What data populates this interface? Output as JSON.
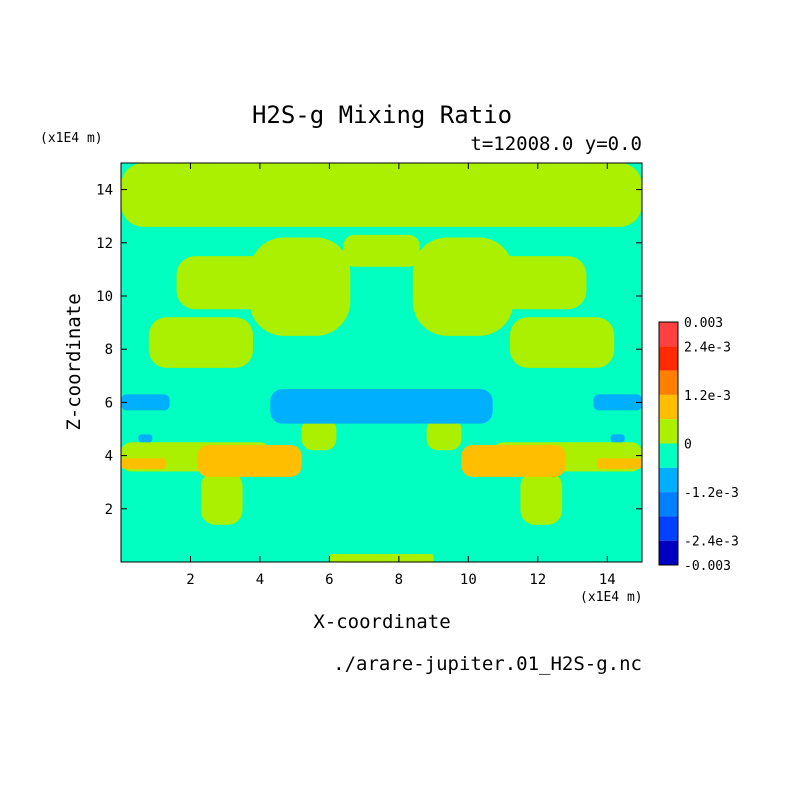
{
  "chart_data": {
    "type": "heatmap",
    "title": "H2S-g Mixing Ratio",
    "subtitle": "t=12008.0 y=0.0",
    "xlabel": "X-coordinate",
    "ylabel": "Z-coordinate",
    "x_unit": "(x1E4 m)",
    "y_unit": "(x1E4 m)",
    "footer": "./arare-jupiter.01_H2S-g.nc",
    "xlim": [
      0,
      15
    ],
    "ylim": [
      0,
      15
    ],
    "x_ticks": [
      2,
      4,
      6,
      8,
      10,
      12,
      14
    ],
    "y_ticks": [
      2,
      4,
      6,
      8,
      10,
      12,
      14
    ],
    "grid": false,
    "colorbar": {
      "range": [
        -0.003,
        0.003
      ],
      "levels": [
        {
          "from": 0.0024,
          "to": 0.003,
          "color": "#ff4040"
        },
        {
          "from": 0.0018,
          "to": 0.0024,
          "color": "#ff2a00"
        },
        {
          "from": 0.0012,
          "to": 0.0018,
          "color": "#ff7f00"
        },
        {
          "from": 0.0006,
          "to": 0.0012,
          "color": "#ffbf00"
        },
        {
          "from": 0.0,
          "to": 0.0006,
          "color": "#aaf000"
        },
        {
          "from": -0.0006,
          "to": 0.0,
          "color": "#00ffc0"
        },
        {
          "from": -0.0012,
          "to": -0.0006,
          "color": "#00b0ff"
        },
        {
          "from": -0.0018,
          "to": -0.0012,
          "color": "#007fff"
        },
        {
          "from": -0.0024,
          "to": -0.0018,
          "color": "#0040ff"
        },
        {
          "from": -0.003,
          "to": -0.0024,
          "color": "#0000c0"
        }
      ],
      "tick_labels": [
        {
          "value": 0.003,
          "label": "0.003"
        },
        {
          "value": 0.0024,
          "label": "2.4e-3"
        },
        {
          "value": 0.0012,
          "label": "1.2e-3"
        },
        {
          "value": 0.0,
          "label": "0"
        },
        {
          "value": -0.0012,
          "label": "-1.2e-3"
        },
        {
          "value": -0.0024,
          "label": "-2.4e-3"
        },
        {
          "value": -0.003,
          "label": "-0.003"
        }
      ]
    },
    "regions": [
      {
        "level": 0.0003,
        "color": "#aaf000",
        "x": [
          0,
          15
        ],
        "z": [
          12.6,
          15
        ]
      },
      {
        "level": 0.0003,
        "color": "#aaf000",
        "x": [
          0.8,
          3.8
        ],
        "z": [
          7.3,
          9.2
        ]
      },
      {
        "level": 0.0003,
        "color": "#aaf000",
        "x": [
          11.2,
          14.2
        ],
        "z": [
          7.3,
          9.2
        ]
      },
      {
        "level": 0.0003,
        "color": "#aaf000",
        "x": [
          3.7,
          6.6
        ],
        "z": [
          8.5,
          12.2
        ]
      },
      {
        "level": 0.0003,
        "color": "#aaf000",
        "x": [
          8.4,
          11.3
        ],
        "z": [
          8.5,
          12.2
        ]
      },
      {
        "level": 0.0003,
        "color": "#aaf000",
        "x": [
          1.6,
          4.5
        ],
        "z": [
          9.5,
          11.5
        ]
      },
      {
        "level": 0.0003,
        "color": "#aaf000",
        "x": [
          10.5,
          13.4
        ],
        "z": [
          9.5,
          11.5
        ]
      },
      {
        "level": 0.0003,
        "color": "#aaf000",
        "x": [
          6.4,
          8.6
        ],
        "z": [
          11.1,
          12.3
        ]
      },
      {
        "level": 0.0003,
        "color": "#aaf000",
        "x": [
          0,
          4.3
        ],
        "z": [
          3.4,
          4.5
        ]
      },
      {
        "level": 0.0003,
        "color": "#aaf000",
        "x": [
          10.7,
          15
        ],
        "z": [
          3.4,
          4.5
        ]
      },
      {
        "level": 0.0003,
        "color": "#aaf000",
        "x": [
          2.3,
          3.5
        ],
        "z": [
          1.4,
          3.4
        ]
      },
      {
        "level": 0.0003,
        "color": "#aaf000",
        "x": [
          11.5,
          12.7
        ],
        "z": [
          1.4,
          3.4
        ]
      },
      {
        "level": 0.0003,
        "color": "#aaf000",
        "x": [
          5.2,
          6.2
        ],
        "z": [
          4.2,
          5.4
        ]
      },
      {
        "level": 0.0003,
        "color": "#aaf000",
        "x": [
          8.8,
          9.8
        ],
        "z": [
          4.2,
          5.4
        ]
      },
      {
        "level": 0.0003,
        "color": "#aaf000",
        "x": [
          6.0,
          9.0
        ],
        "z": [
          0,
          0.3
        ]
      },
      {
        "level": 0.0009,
        "color": "#ffbf00",
        "x": [
          2.2,
          5.2
        ],
        "z": [
          3.2,
          4.4
        ]
      },
      {
        "level": 0.0009,
        "color": "#ffbf00",
        "x": [
          9.8,
          12.8
        ],
        "z": [
          3.2,
          4.4
        ]
      },
      {
        "level": 0.0009,
        "color": "#ffbf00",
        "x": [
          0,
          1.3
        ],
        "z": [
          3.5,
          3.9
        ]
      },
      {
        "level": 0.0009,
        "color": "#ffbf00",
        "x": [
          13.7,
          15
        ],
        "z": [
          3.5,
          3.9
        ]
      },
      {
        "level": -0.0009,
        "color": "#00b0ff",
        "x": [
          4.3,
          10.7
        ],
        "z": [
          5.2,
          6.5
        ]
      },
      {
        "level": -0.0009,
        "color": "#00b0ff",
        "x": [
          0,
          1.4
        ],
        "z": [
          5.7,
          6.3
        ]
      },
      {
        "level": -0.0009,
        "color": "#00b0ff",
        "x": [
          13.6,
          15
        ],
        "z": [
          5.7,
          6.3
        ]
      },
      {
        "level": -0.0009,
        "color": "#00b0ff",
        "x": [
          0.5,
          0.9
        ],
        "z": [
          4.5,
          4.8
        ]
      },
      {
        "level": -0.0009,
        "color": "#00b0ff",
        "x": [
          14.1,
          14.5
        ],
        "z": [
          4.5,
          4.8
        ]
      }
    ]
  }
}
